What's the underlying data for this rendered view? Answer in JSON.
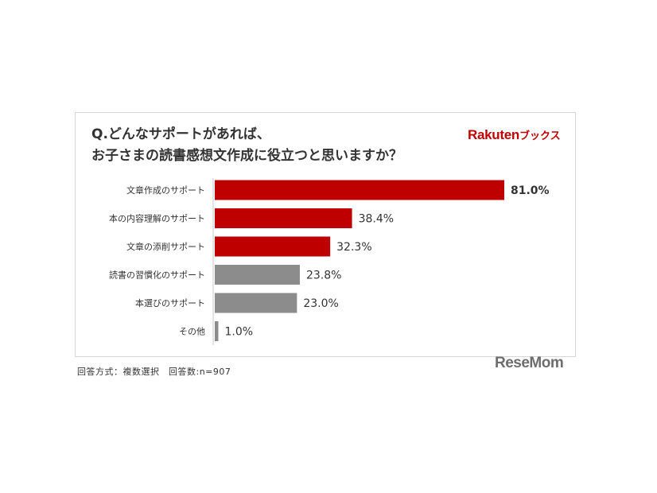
{
  "title": {
    "line1": "Q.どんなサポートがあれば、",
    "line2": "お子さまの読書感想文作成に役立つと思いますか？"
  },
  "brand": {
    "name": "Rakuten",
    "sub": "ブックス"
  },
  "footnote": "回答方式：複数選択　回答数:n=907",
  "watermark": "ReseMom",
  "colors": {
    "highlight": "#bf0000",
    "other": "#8c8c8c",
    "brand": "#bf0000"
  },
  "chart_data": {
    "type": "bar",
    "orientation": "horizontal",
    "categories": [
      "文章作成のサポート",
      "本の内容理解のサポート",
      "文章の添削サポート",
      "読書の習慣化のサポート",
      "本選びのサポート",
      "その他"
    ],
    "values": [
      81.0,
      38.4,
      32.3,
      23.8,
      23.0,
      1.0
    ],
    "value_labels": [
      "81.0%",
      "38.4%",
      "32.3%",
      "23.8%",
      "23.0%",
      "1.0%"
    ],
    "highlighted": [
      true,
      true,
      true,
      false,
      false,
      false
    ],
    "unit": "%",
    "xlim": [
      0,
      81
    ],
    "grid": false
  }
}
